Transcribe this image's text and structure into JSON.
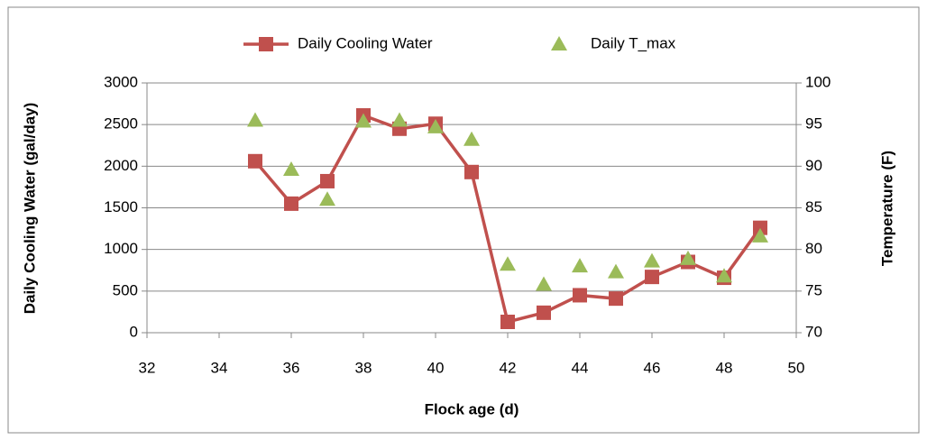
{
  "chart_data": {
    "type": "line",
    "legend": "top",
    "grid": true,
    "xlabel": "Flock age (d)",
    "ylabel": "Daily Cooling Water (gal/day)",
    "y2label": "Temperature (F)",
    "xlim": [
      32,
      50
    ],
    "xticks": [
      32,
      34,
      36,
      38,
      40,
      42,
      44,
      46,
      48,
      50
    ],
    "ylim": [
      0,
      3000
    ],
    "yticks": [
      0,
      500,
      1000,
      1500,
      2000,
      2500,
      3000
    ],
    "y2lim": [
      70,
      100
    ],
    "y2ticks": [
      70,
      75,
      80,
      85,
      90,
      95,
      100
    ],
    "x": [
      35,
      36,
      37,
      38,
      39,
      40,
      41,
      42,
      43,
      44,
      45,
      46,
      47,
      48,
      49
    ],
    "series": [
      {
        "name": "Daily Cooling Water",
        "color": "#c0504d",
        "marker": "square",
        "line": true,
        "values": [
          2060,
          1550,
          1820,
          2610,
          2450,
          2510,
          1930,
          130,
          240,
          450,
          410,
          670,
          850,
          660,
          1260
        ]
      },
      {
        "name": "Daily T_max",
        "color": "#9bbb59",
        "marker": "triangle",
        "line": false,
        "axis": "y2",
        "values": [
          95.5,
          89.6,
          86,
          95.4,
          95.5,
          94.7,
          93.2,
          78.2,
          75.8,
          78,
          77.3,
          78.6,
          78.9,
          76.8,
          81.6
        ]
      }
    ]
  }
}
